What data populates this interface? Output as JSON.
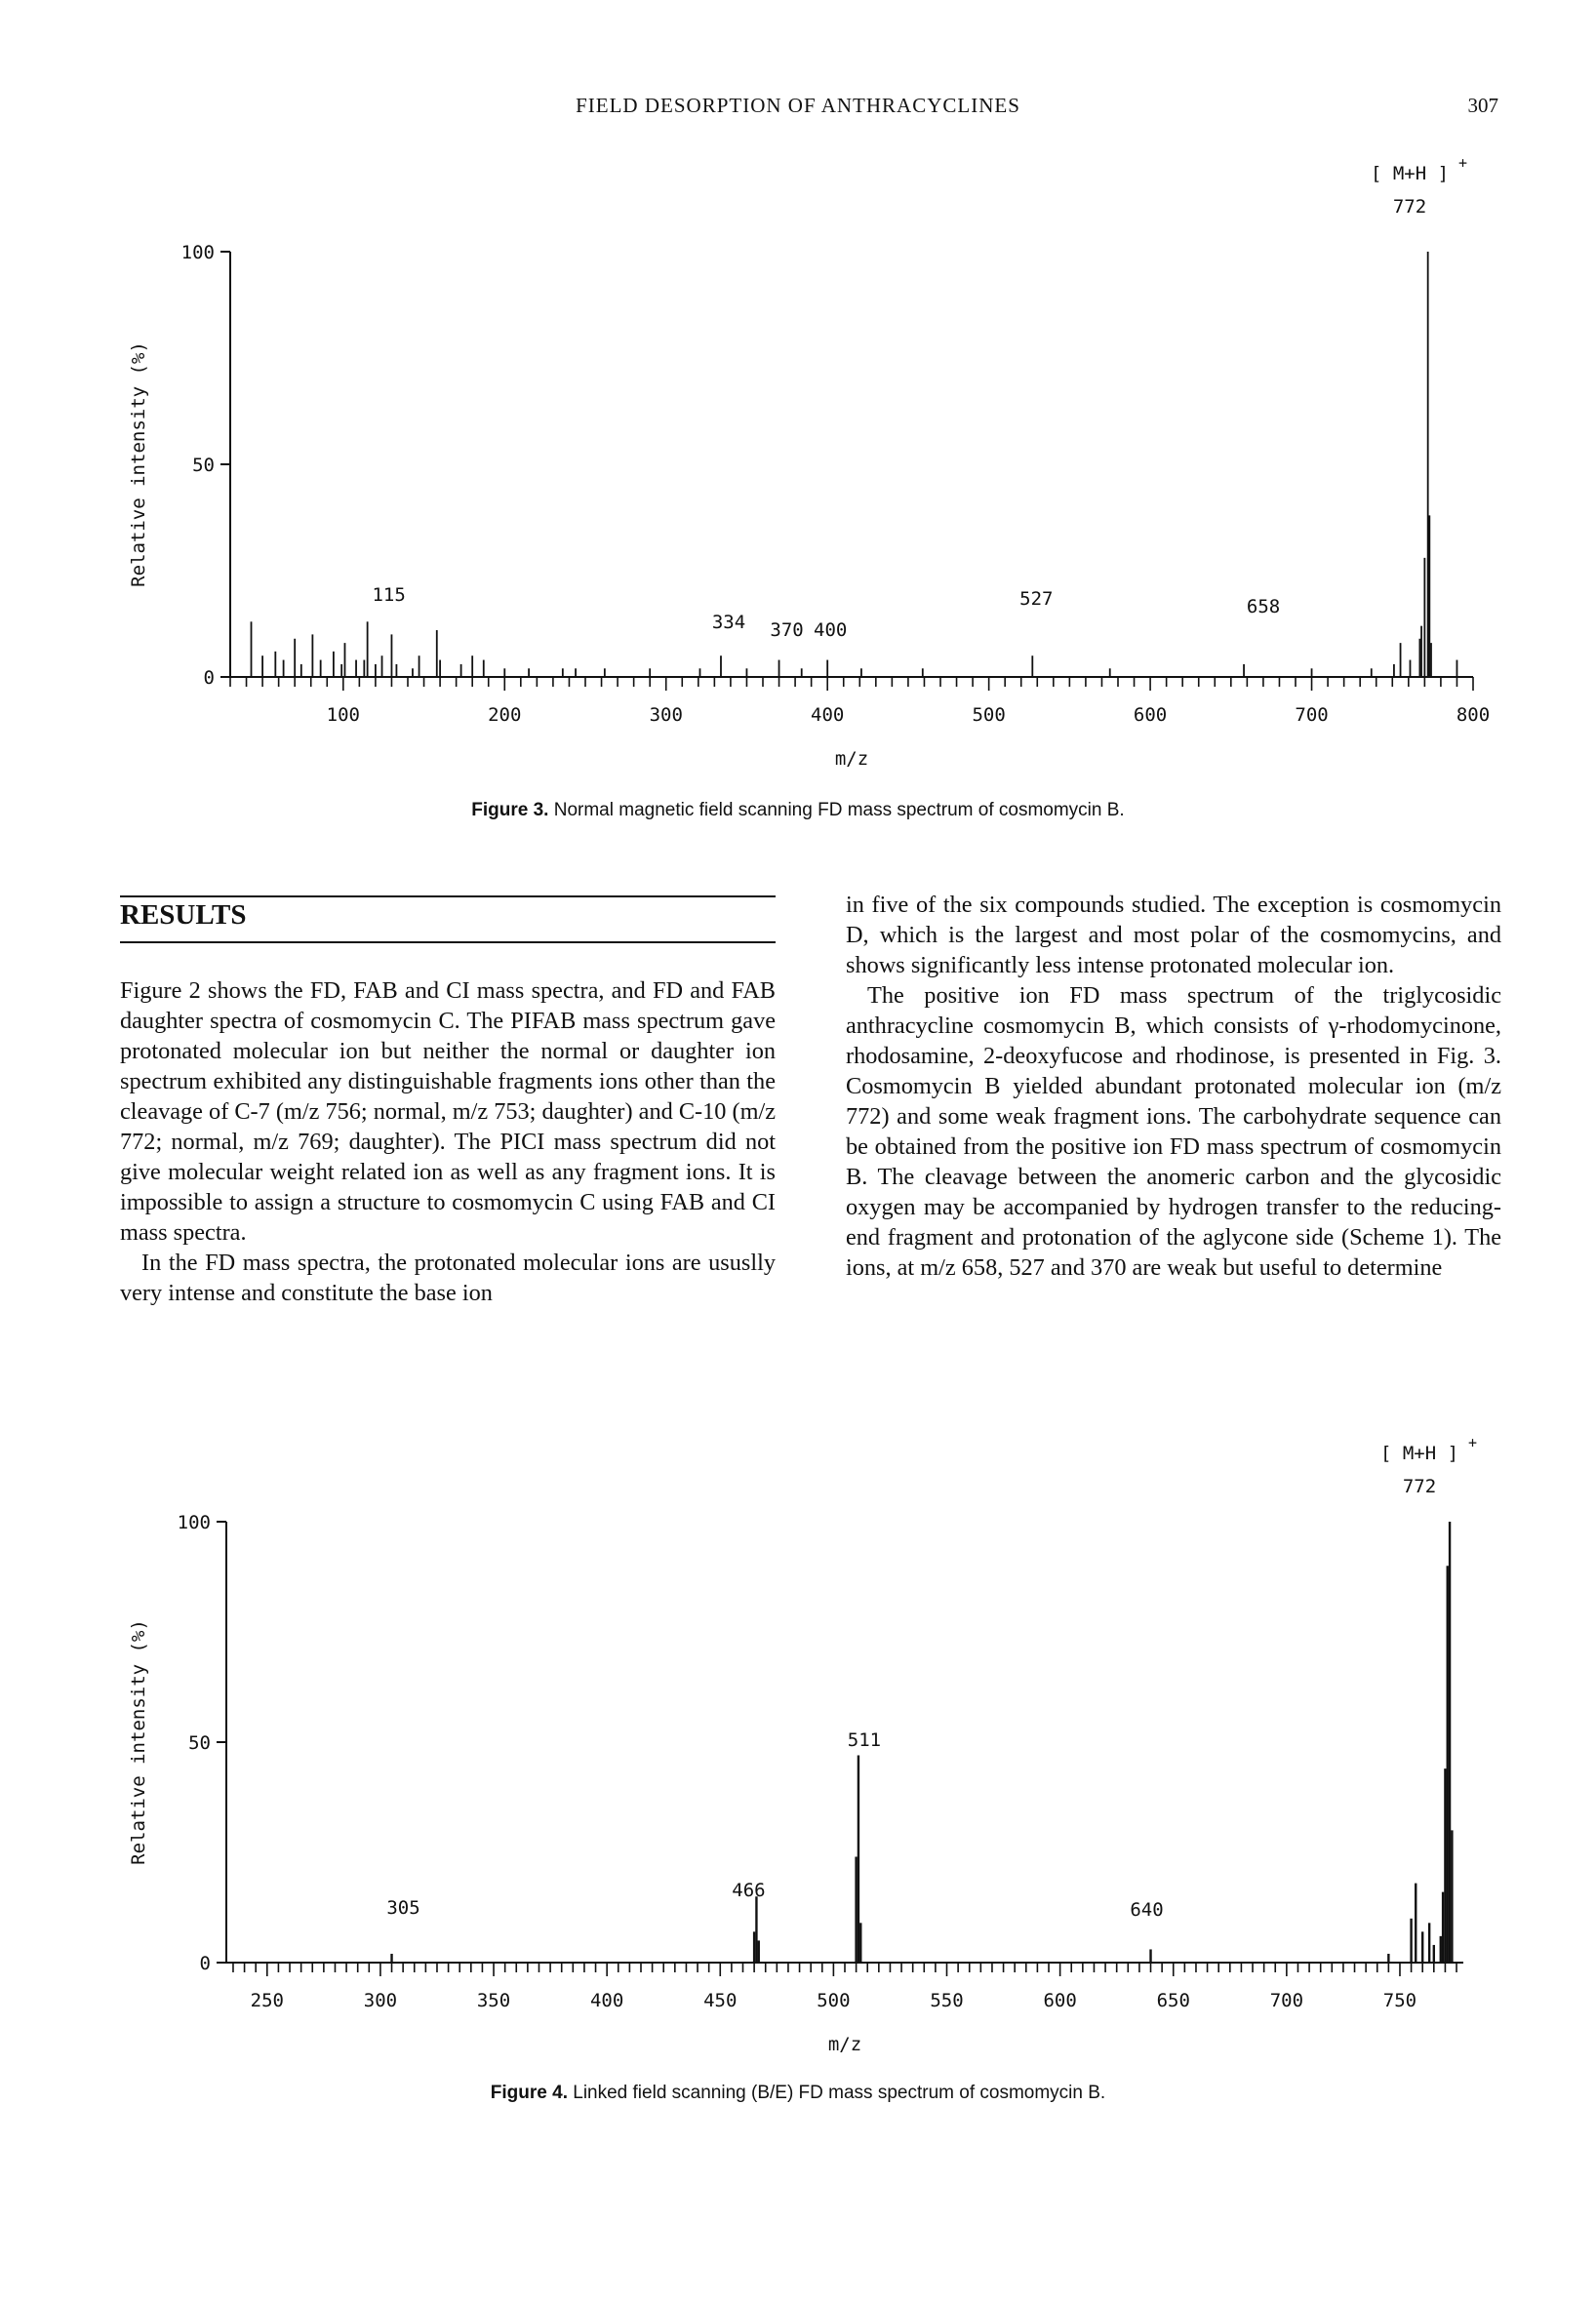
{
  "running_head": {
    "title": "FIELD DESORPTION OF ANTHRACYCLINES",
    "page_number": "307"
  },
  "figure3": {
    "caption_label": "Figure 3.",
    "caption_text": " Normal magnetic field scanning FD mass spectrum of cosmomycin B.",
    "ion_label": "[ M+H ]",
    "ion_sup": "+",
    "ion_value": "772",
    "peak_labels": [
      "115",
      "334",
      "370",
      "400",
      "527",
      "658"
    ],
    "ylabel": "Relative intensity (%)",
    "xlabel": "m/z",
    "y_ticks": [
      "100",
      "50",
      "0"
    ],
    "x_ticks": [
      "100",
      "200",
      "300",
      "400",
      "500",
      "600",
      "700",
      "800"
    ]
  },
  "figure4": {
    "caption_label": "Figure 4.",
    "caption_text": " Linked field scanning (B/E) FD mass spectrum of cosmomycin B.",
    "ion_label": "[ M+H ]",
    "ion_sup": "+",
    "ion_value": "772",
    "peak_labels": [
      "305",
      "466",
      "511",
      "640"
    ],
    "ylabel": "Relative intensity (%)",
    "xlabel": "m/z",
    "y_ticks": [
      "100",
      "50",
      "0"
    ],
    "x_ticks": [
      "250",
      "300",
      "350",
      "400",
      "450",
      "500",
      "550",
      "600",
      "650",
      "700",
      "750"
    ]
  },
  "results": {
    "heading": "RESULTS",
    "left_paragraphs": [
      "Figure 2 shows the FD, FAB and CI mass spectra, and FD and FAB daughter spectra of cosmomycin C. The PIFAB mass spectrum gave protonated molecular ion but neither the normal or daughter ion spectrum exhibited any distinguishable fragments ions other than the cleavage of C-7 (m/z 756; normal, m/z 753; daughter) and C-10 (m/z 772; normal, m/z 769; daughter). The PICI mass spectrum did not give molecular weight related ion as well as any fragment ions. It is impossible to assign a structure to cosmomycin C using FAB and CI mass spectra.",
      "In the FD mass spectra, the protonated molecular ions are ususlly very intense and constitute the base ion"
    ],
    "right_paragraphs": [
      "in five of the six compounds studied. The exception is cosmomycin D, which is the largest and most polar of the cosmomycins, and shows significantly less intense protonated molecular ion.",
      "The positive ion FD mass spectrum of the triglycosidic anthracycline cosmomycin B, which consists of γ-rhodomycinone, rhodosamine, 2-deoxyfucose and rhodinose, is presented in Fig. 3. Cosmomycin B yielded abundant protonated molecular ion (m/z 772) and some weak fragment ions. The carbohydrate sequence can be obtained from the positive ion FD mass spectrum of cosmomycin B. The cleavage between the anomeric carbon and the glycosidic oxygen may be accompanied by hydrogen transfer to the reducing-end fragment and protonation of the aglycone side (Scheme 1). The ions, at m/z 658, 527 and 370 are weak but useful to determine"
    ]
  },
  "chart_data": [
    {
      "type": "bar",
      "title": "",
      "xlabel": "m/z",
      "ylabel": "Relative intensity (%)",
      "xlim": [
        30,
        800
      ],
      "ylim": [
        0,
        100
      ],
      "x_ticks": [
        100,
        200,
        300,
        400,
        500,
        600,
        700,
        800
      ],
      "y_ticks": [
        0,
        50,
        100
      ],
      "series": [
        {
          "x": [
            43,
            50,
            58,
            63,
            70,
            74,
            81,
            86,
            94,
            99,
            101,
            108,
            113,
            115,
            120,
            124,
            130,
            133,
            143,
            147,
            158,
            160,
            173,
            180,
            187,
            200,
            215,
            236,
            244,
            262,
            290,
            321,
            334,
            350,
            370,
            384,
            400,
            421,
            459,
            527,
            575,
            658,
            700,
            737,
            751,
            755,
            761,
            767,
            768,
            770,
            772,
            773,
            774,
            790
          ],
          "y": [
            13,
            5,
            6,
            4,
            9,
            3,
            10,
            4,
            6,
            3,
            8,
            4,
            4,
            13,
            3,
            5,
            10,
            3,
            2,
            5,
            11,
            4,
            3,
            5,
            4,
            2,
            2,
            2,
            2,
            2,
            2,
            2,
            5,
            2,
            4,
            2,
            4,
            2,
            2,
            5,
            2,
            3,
            2,
            2,
            3,
            8,
            4,
            9,
            12,
            28,
            100,
            38,
            8,
            4
          ]
        }
      ]
    },
    {
      "type": "bar",
      "title": "",
      "xlabel": "m/z",
      "ylabel": "Relative intensity (%)",
      "xlim": [
        232,
        778
      ],
      "ylim": [
        0,
        100
      ],
      "x_ticks": [
        250,
        300,
        350,
        400,
        450,
        500,
        550,
        600,
        650,
        700,
        750
      ],
      "y_ticks": [
        0,
        50,
        100
      ],
      "series": [
        {
          "x": [
            305,
            465,
            466,
            467,
            510,
            511,
            512,
            640,
            745,
            755,
            757,
            760,
            763,
            765,
            768,
            769,
            770,
            771,
            772,
            773
          ],
          "y": [
            2,
            7,
            15,
            5,
            24,
            47,
            9,
            3,
            2,
            10,
            18,
            7,
            9,
            4,
            6,
            16,
            44,
            90,
            100,
            30
          ]
        }
      ]
    }
  ]
}
